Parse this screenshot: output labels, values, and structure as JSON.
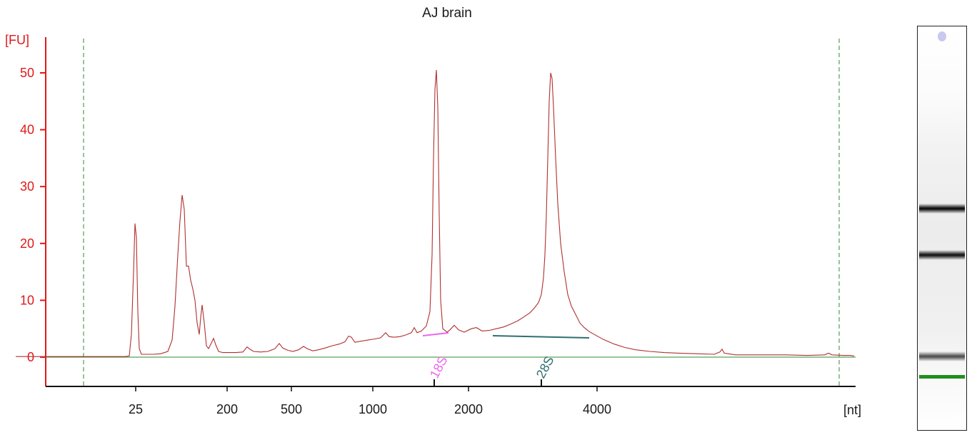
{
  "chart_data": {
    "type": "line",
    "title": "AJ brain",
    "ylabel": "[FU]",
    "xlabel": "[nt]",
    "ylim": [
      -5,
      56
    ],
    "y_ticks": [
      0,
      10,
      20,
      30,
      40,
      50
    ],
    "x_ticks": [
      "25",
      "200",
      "500",
      "1000",
      "2000",
      "4000"
    ],
    "x_axis": "time",
    "annotations": [
      "18S",
      "28S"
    ],
    "colors": {
      "trace": "#b03030",
      "axis_y": "#e0191a",
      "baseline": "#2e8b2e",
      "marker_18s": "#ee66ee",
      "marker_28s": "#2f7070",
      "guide": "#2e8b2e"
    },
    "series": [
      {
        "values_by_time": [
          [
            22,
            0.1
          ],
          [
            40,
            0.1
          ],
          [
            60,
            0.1
          ],
          [
            80,
            0.1
          ],
          [
            100,
            0.1
          ],
          [
            120,
            0.1
          ],
          [
            140,
            0.1
          ],
          [
            160,
            0.1
          ],
          [
            175,
            0.1
          ],
          [
            181,
            0.2
          ],
          [
            184,
            4
          ],
          [
            187,
            15
          ],
          [
            189,
            23.5
          ],
          [
            191,
            21
          ],
          [
            193,
            8
          ],
          [
            195,
            1.5
          ],
          [
            198,
            0.5
          ],
          [
            205,
            0.5
          ],
          [
            215,
            0.5
          ],
          [
            225,
            0.6
          ],
          [
            235,
            1
          ],
          [
            241,
            3
          ],
          [
            245,
            9
          ],
          [
            249,
            18
          ],
          [
            252,
            24
          ],
          [
            255,
            28.5
          ],
          [
            258,
            26
          ],
          [
            261,
            16
          ],
          [
            264,
            16
          ],
          [
            267,
            13.5
          ],
          [
            270,
            12
          ],
          [
            273,
            10
          ],
          [
            276,
            6
          ],
          [
            279,
            4
          ],
          [
            281,
            7
          ],
          [
            283,
            9.2
          ],
          [
            286,
            6
          ],
          [
            289,
            2
          ],
          [
            292,
            1.5
          ],
          [
            296,
            2.5
          ],
          [
            299,
            3.3
          ],
          [
            302,
            2.2
          ],
          [
            306,
            1
          ],
          [
            312,
            0.8
          ],
          [
            320,
            0.8
          ],
          [
            330,
            0.8
          ],
          [
            340,
            0.9
          ],
          [
            346,
            1.8
          ],
          [
            350,
            1.4
          ],
          [
            355,
            1
          ],
          [
            365,
            0.9
          ],
          [
            375,
            1
          ],
          [
            385,
            1.5
          ],
          [
            391,
            2.4
          ],
          [
            396,
            1.6
          ],
          [
            403,
            1.2
          ],
          [
            410,
            1
          ],
          [
            418,
            1.3
          ],
          [
            425,
            1.9
          ],
          [
            430,
            1.5
          ],
          [
            438,
            1.1
          ],
          [
            446,
            1.3
          ],
          [
            455,
            1.6
          ],
          [
            465,
            2
          ],
          [
            475,
            2.3
          ],
          [
            483,
            2.7
          ],
          [
            488,
            3.7
          ],
          [
            492,
            3.5
          ],
          [
            497,
            2.6
          ],
          [
            505,
            2.8
          ],
          [
            515,
            3
          ],
          [
            525,
            3.2
          ],
          [
            533,
            3.4
          ],
          [
            540,
            4.3
          ],
          [
            545,
            3.6
          ],
          [
            552,
            3.5
          ],
          [
            560,
            3.6
          ],
          [
            568,
            3.9
          ],
          [
            576,
            4.3
          ],
          [
            580,
            5.2
          ],
          [
            584,
            4.3
          ],
          [
            590,
            4.6
          ],
          [
            597,
            5.5
          ],
          [
            602,
            8
          ],
          [
            605,
            18
          ],
          [
            607,
            35
          ],
          [
            609,
            47
          ],
          [
            611,
            50.5
          ],
          [
            613,
            44
          ],
          [
            615,
            25
          ],
          [
            617,
            10
          ],
          [
            620,
            5
          ],
          [
            626,
            4.4
          ],
          [
            630,
            4.8
          ],
          [
            636,
            5.6
          ],
          [
            642,
            4.8
          ],
          [
            650,
            4.4
          ],
          [
            660,
            5
          ],
          [
            667,
            5.2
          ],
          [
            675,
            4.6
          ],
          [
            685,
            4.7
          ],
          [
            695,
            5
          ],
          [
            705,
            5.3
          ],
          [
            715,
            5.8
          ],
          [
            725,
            6.4
          ],
          [
            735,
            7.2
          ],
          [
            742,
            7.8
          ],
          [
            748,
            8.6
          ],
          [
            754,
            9.6
          ],
          [
            758,
            11
          ],
          [
            761,
            14
          ],
          [
            763,
            18
          ],
          [
            765,
            25
          ],
          [
            767,
            35
          ],
          [
            769,
            45
          ],
          [
            771,
            50
          ],
          [
            773,
            49
          ],
          [
            775,
            44
          ],
          [
            778,
            35
          ],
          [
            781,
            27
          ],
          [
            785,
            20
          ],
          [
            790,
            15
          ],
          [
            795,
            11
          ],
          [
            800,
            9
          ],
          [
            806,
            7.5
          ],
          [
            812,
            6
          ],
          [
            818,
            5.2
          ],
          [
            825,
            4.5
          ],
          [
            835,
            3.8
          ],
          [
            845,
            3.1
          ],
          [
            860,
            2.3
          ],
          [
            875,
            1.7
          ],
          [
            890,
            1.3
          ],
          [
            910,
            1
          ],
          [
            930,
            0.8
          ],
          [
            950,
            0.7
          ],
          [
            975,
            0.6
          ],
          [
            1000,
            0.5
          ],
          [
            1008,
            0.9
          ],
          [
            1011,
            1.4
          ],
          [
            1014,
            0.7
          ],
          [
            1030,
            0.4
          ],
          [
            1050,
            0.4
          ],
          [
            1080,
            0.4
          ],
          [
            1100,
            0.4
          ],
          [
            1130,
            0.3
          ],
          [
            1155,
            0.4
          ],
          [
            1160,
            0.7
          ],
          [
            1165,
            0.4
          ],
          [
            1180,
            0.3
          ],
          [
            1190,
            0.3
          ],
          [
            1196,
            0.2
          ]
        ]
      }
    ]
  },
  "gel_bands": [
    {
      "name": "ladder-marker",
      "pos": 0.015,
      "color": "#c8c8f0"
    },
    {
      "name": "band-28s",
      "pos": 0.45,
      "color": "#111111"
    },
    {
      "name": "band-18s",
      "pos": 0.565,
      "color": "#1a1a1a"
    },
    {
      "name": "band-lower",
      "pos": 0.815,
      "color": "#555555"
    },
    {
      "name": "band-marker",
      "pos": 0.86,
      "color": "#1f8f1f"
    }
  ]
}
